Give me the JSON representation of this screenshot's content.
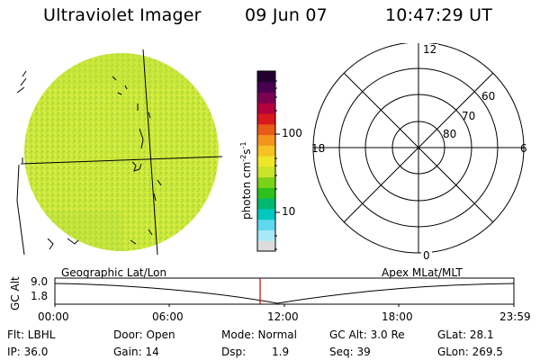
{
  "header": {
    "instrument": "Ultraviolet Imager",
    "date": "09 Jun 07",
    "time": "10:47:29 UT"
  },
  "colorbar": {
    "unit_label": "photon cm",
    "unit_exp1": "-2",
    "unit_mid": "s",
    "unit_exp2": "-1",
    "tick_100": "100",
    "tick_10": "10",
    "colors": [
      "#dcdcdc",
      "#a9e9f7",
      "#5fd8f0",
      "#00c8c0",
      "#00b870",
      "#2cc01c",
      "#7ad218",
      "#c8e428",
      "#f0e628",
      "#f6c224",
      "#f4941c",
      "#e85a18",
      "#d8181c",
      "#b4003c",
      "#7c0050",
      "#4a0050",
      "#240030"
    ]
  },
  "polar": {
    "mlt_labels": {
      "top": "12",
      "right": "6",
      "bottom": "0",
      "left": "18"
    },
    "lat_labels": [
      "60",
      "70",
      "80"
    ]
  },
  "timeline": {
    "left_title": "Geographic Lat/Lon",
    "right_title": "Apex MLat/MLT",
    "ylabel": "GC Alt",
    "ytick_top": "9.0",
    "ytick_bottom": "1.8",
    "xticks": [
      "00:00",
      "06:00",
      "12:00",
      "18:00",
      "23:59"
    ],
    "marker_color": "#c80000"
  },
  "status": {
    "flt": "Flt: LBHL",
    "door": "Door: Open",
    "mode": "Mode: Normal",
    "gcalt": "GC Alt: 3.0 Re",
    "glat": "GLat:  28.1",
    "ip": "IP: 36.0",
    "gain": "Gain: 14",
    "dsp_label": "Dsp:",
    "dsp_value": "1.9",
    "seq": "Seq: 39",
    "glon": "GLon: 269.5"
  }
}
